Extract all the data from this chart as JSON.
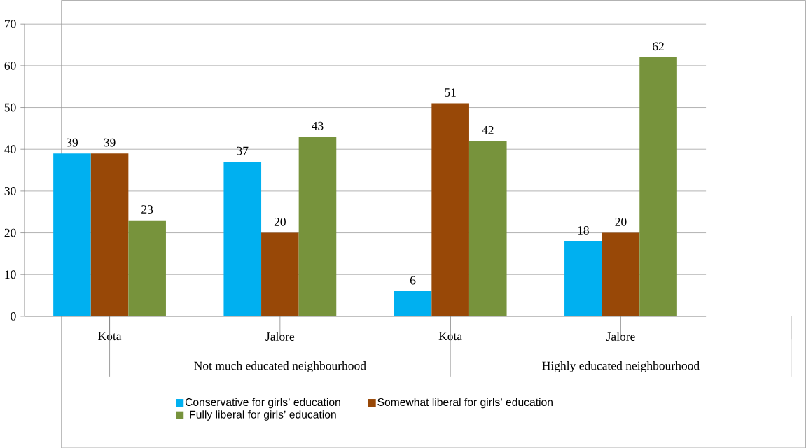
{
  "chart_data": {
    "type": "bar",
    "categories": [
      "Kota",
      "Jalore",
      "Kota",
      "Jalore"
    ],
    "series": [
      {
        "name": "Conservative for girls’ education",
        "color": "#00b0f0",
        "values": [
          39,
          37,
          6,
          18
        ]
      },
      {
        "name": "Somewhat liberal for girls’ education",
        "color": "#984807",
        "values": [
          39,
          20,
          51,
          20
        ]
      },
      {
        "name": "Fully liberal for girls’ education",
        "color": "#77933c",
        "values": [
          23,
          43,
          42,
          62
        ]
      }
    ],
    "ylim": [
      0,
      70
    ],
    "yticks": [
      0,
      10,
      20,
      30,
      40,
      50,
      60,
      70
    ],
    "grid": "y",
    "legend": "bottom",
    "data_labels": true,
    "annotations": [
      "Not much educated neighbourhood",
      "Highly educated neighbourhood"
    ]
  }
}
